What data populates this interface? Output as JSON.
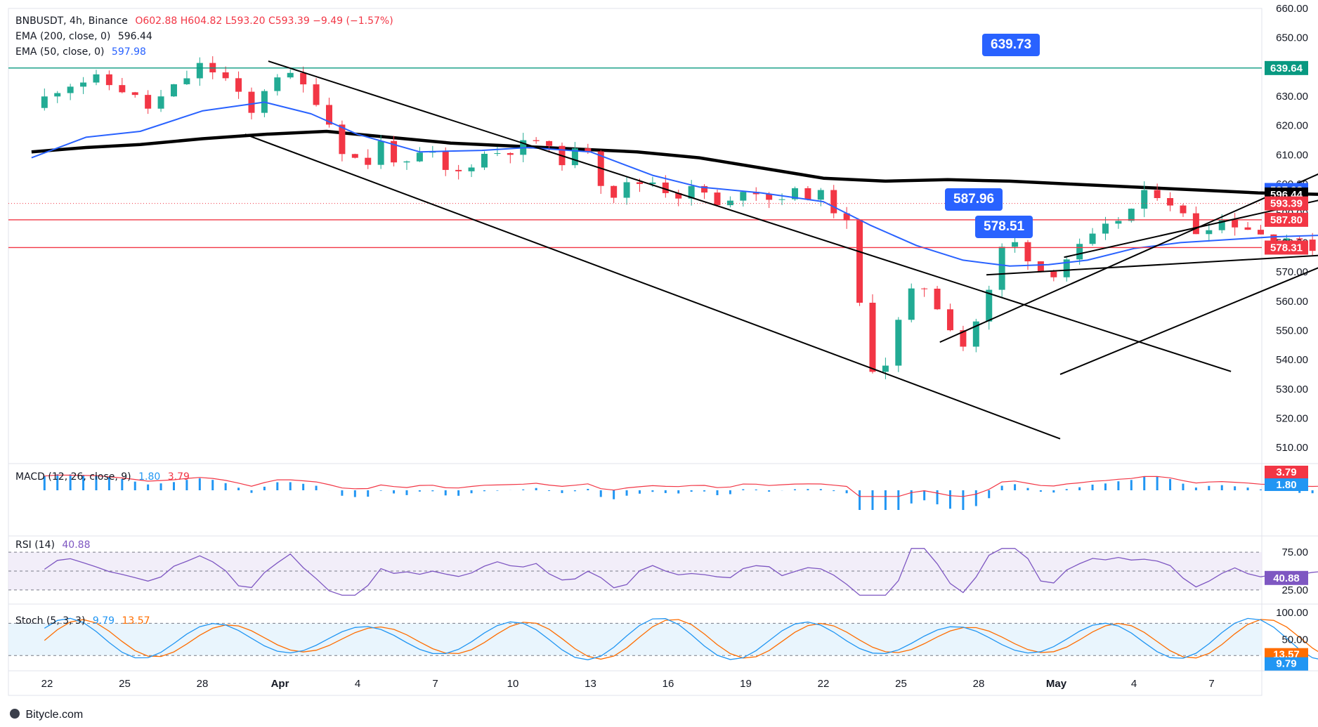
{
  "header": {
    "symbol": "BNBUSDT, 4h, Binance",
    "ohlc": "O602.88  H604.82  L593.20  C593.39  −9.49 (−1.57%)",
    "ema200_label": "EMA (200, close, 0)",
    "ema200_value": "596.44",
    "ema50_label": "EMA (50, close, 0)",
    "ema50_value": "597.98"
  },
  "indicators": {
    "macd_label": "MACD (12, 26, close, 9)",
    "macd_value": "1.80",
    "signal_value": "3.79",
    "rsi_label": "RSI (14)",
    "rsi_value": "40.88",
    "stoch_label": "Stoch (5, 3, 3)",
    "stoch_k": "9.79",
    "stoch_d": "13.57"
  },
  "callouts": {
    "upper": "639.73",
    "mid": "587.96",
    "lower": "578.51"
  },
  "brand": "Bitycle.com",
  "colors": {
    "up": "#22ab94",
    "down": "#f23645",
    "ema50": "#2962ff",
    "ema200": "#000000",
    "green_line": "#089981",
    "red_line": "#f23645",
    "callout": "#2962ff",
    "rsi": "#7e57c2",
    "stoch_k": "#2196f3",
    "stoch_d": "#ff6d00"
  },
  "chart_data": {
    "type": "candlestick",
    "symbol": "BNBUSDT",
    "timeframe": "4h",
    "exchange": "Binance",
    "price_axis": {
      "ylim": [
        505,
        660
      ],
      "ticks": [
        660,
        650,
        640,
        630,
        620,
        610,
        600,
        590,
        580,
        570,
        560,
        550,
        540,
        530,
        520,
        510
      ],
      "tick_labels": [
        "660.00",
        "650.00",
        "640.00",
        "630.00",
        "620.00",
        "610.00",
        "600.00",
        "590.00",
        "580.00",
        "570.00",
        "560.00",
        "550.00",
        "540.00",
        "530.00",
        "520.00",
        "510.00"
      ]
    },
    "x_axis": {
      "labels": [
        "22",
        "25",
        "28",
        "Apr",
        "4",
        "7",
        "10",
        "13",
        "16",
        "19",
        "22",
        "25",
        "28",
        "May",
        "4",
        "7"
      ],
      "last_bar_label_index": 10.85
    },
    "price_path": [
      [
        -0.2,
        626
      ],
      [
        0.2,
        634
      ],
      [
        0.6,
        636
      ],
      [
        1.0,
        632
      ],
      [
        1.3,
        626
      ],
      [
        1.6,
        632
      ],
      [
        2.0,
        641
      ],
      [
        2.4,
        634
      ],
      [
        2.6,
        622
      ],
      [
        2.9,
        638
      ],
      [
        3.2,
        636
      ],
      [
        3.5,
        628
      ],
      [
        3.8,
        612
      ],
      [
        4.1,
        606
      ],
      [
        4.3,
        614
      ],
      [
        4.6,
        605
      ],
      [
        4.9,
        612
      ],
      [
        5.2,
        602
      ],
      [
        5.6,
        610
      ],
      [
        6.0,
        612
      ],
      [
        6.3,
        615
      ],
      [
        6.6,
        608
      ],
      [
        7.0,
        613
      ],
      [
        7.2,
        595
      ],
      [
        7.5,
        600
      ],
      [
        7.8,
        601
      ],
      [
        8.1,
        596
      ],
      [
        8.4,
        599
      ],
      [
        8.7,
        590
      ],
      [
        9.0,
        600
      ],
      [
        9.3,
        595
      ],
      [
        9.6,
        597
      ],
      [
        10.0,
        596
      ],
      [
        10.3,
        586
      ],
      [
        10.5,
        553
      ],
      [
        10.7,
        530
      ],
      [
        10.9,
        548
      ],
      [
        11.1,
        562
      ],
      [
        11.3,
        565
      ],
      [
        11.6,
        553
      ],
      [
        11.8,
        545
      ],
      [
        12.1,
        560
      ],
      [
        12.3,
        578
      ],
      [
        12.5,
        580
      ],
      [
        12.7,
        573
      ],
      [
        12.9,
        568
      ],
      [
        13.1,
        574
      ],
      [
        13.4,
        580
      ],
      [
        13.7,
        586
      ],
      [
        14.0,
        592
      ],
      [
        14.2,
        598
      ],
      [
        14.4,
        596
      ],
      [
        14.6,
        590
      ],
      [
        14.8,
        584
      ],
      [
        15.1,
        588
      ],
      [
        15.4,
        586
      ],
      [
        15.7,
        582
      ],
      [
        16.0,
        582
      ],
      [
        16.2,
        578
      ],
      [
        16.5,
        580
      ],
      [
        16.8,
        583
      ],
      [
        17.1,
        587
      ],
      [
        17.4,
        589
      ],
      [
        17.7,
        592
      ],
      [
        18.0,
        590
      ],
      [
        18.3,
        589
      ],
      [
        18.6,
        591
      ],
      [
        18.9,
        590
      ],
      [
        19.2,
        588
      ],
      [
        19.4,
        597
      ],
      [
        19.6,
        604
      ],
      [
        19.8,
        599
      ],
      [
        20.0,
        594
      ],
      [
        20.2,
        604
      ],
      [
        20.5,
        610
      ],
      [
        20.7,
        614
      ],
      [
        20.85,
        618
      ],
      [
        21.0,
        611
      ],
      [
        21.2,
        606
      ],
      [
        21.4,
        604
      ],
      [
        21.55,
        593.39
      ]
    ],
    "series": [
      {
        "name": "EMA (200, close, 0)",
        "last": 596.44,
        "path": [
          [
            -0.2,
            611
          ],
          [
            0.5,
            612.5
          ],
          [
            1.2,
            613.5
          ],
          [
            2.0,
            615.5
          ],
          [
            2.8,
            617
          ],
          [
            3.6,
            618
          ],
          [
            4.4,
            616
          ],
          [
            5.2,
            614
          ],
          [
            6.0,
            613
          ],
          [
            6.8,
            612
          ],
          [
            7.6,
            611
          ],
          [
            8.4,
            609
          ],
          [
            9.2,
            605.5
          ],
          [
            10.0,
            602
          ],
          [
            10.8,
            601
          ],
          [
            11.6,
            601.5
          ],
          [
            12.4,
            601
          ],
          [
            13.2,
            600
          ],
          [
            14.0,
            599
          ],
          [
            14.8,
            598
          ],
          [
            15.6,
            597
          ],
          [
            16.4,
            596.5
          ],
          [
            17.2,
            596
          ],
          [
            18.0,
            596
          ],
          [
            18.8,
            596
          ],
          [
            19.6,
            595.5
          ],
          [
            20.4,
            595.5
          ],
          [
            21.0,
            596
          ],
          [
            21.55,
            596.44
          ]
        ]
      },
      {
        "name": "EMA (50, close, 0)",
        "last": 597.98,
        "path": [
          [
            -0.2,
            609
          ],
          [
            0.5,
            616
          ],
          [
            1.2,
            618
          ],
          [
            2.0,
            625
          ],
          [
            2.8,
            628
          ],
          [
            3.4,
            624
          ],
          [
            4.0,
            617
          ],
          [
            4.8,
            611
          ],
          [
            5.6,
            611.5
          ],
          [
            6.2,
            612.5
          ],
          [
            7.0,
            611
          ],
          [
            7.8,
            603
          ],
          [
            8.4,
            599
          ],
          [
            9.2,
            597
          ],
          [
            10.0,
            594
          ],
          [
            10.6,
            586
          ],
          [
            11.2,
            579
          ],
          [
            11.8,
            574
          ],
          [
            12.4,
            572
          ],
          [
            12.9,
            572.5
          ],
          [
            13.4,
            574
          ],
          [
            14.0,
            578
          ],
          [
            14.6,
            580
          ],
          [
            15.2,
            581
          ],
          [
            15.8,
            582
          ],
          [
            16.4,
            582.5
          ],
          [
            17.0,
            584
          ],
          [
            17.6,
            586
          ],
          [
            18.2,
            587
          ],
          [
            18.8,
            588
          ],
          [
            19.4,
            589
          ],
          [
            20.0,
            592
          ],
          [
            20.6,
            595
          ],
          [
            21.0,
            597
          ],
          [
            21.3,
            598.5
          ],
          [
            21.55,
            597.98
          ]
        ]
      }
    ],
    "horizontal_levels": [
      {
        "value": 639.64,
        "label": "639.64",
        "color": "#089981"
      },
      {
        "value": 587.8,
        "label": "587.80",
        "color": "#f23645"
      },
      {
        "value": 578.31,
        "label": "578.31",
        "color": "#f23645"
      }
    ],
    "price_labels": [
      {
        "value": 597.98,
        "label": "597.98",
        "color": "#2962ff"
      },
      {
        "value": 596.44,
        "label": "596.44",
        "color": "#000000"
      },
      {
        "value": 593.39,
        "label": "593.39",
        "color": "#f23645"
      }
    ],
    "trend_lines": [
      {
        "x1": 2.85,
        "y1": 642,
        "x2": 15.25,
        "y2": 536
      },
      {
        "x1": 2.55,
        "y1": 617,
        "x2": 13.05,
        "y2": 513
      },
      {
        "x1": 11.5,
        "y1": 546,
        "x2": 19.65,
        "y2": 642
      },
      {
        "x1": 13.1,
        "y1": 575,
        "x2": 20.85,
        "y2": 621
      },
      {
        "x1": 12.1,
        "y1": 569,
        "x2": 23.1,
        "y2": 586
      },
      {
        "x1": 13.05,
        "y1": 535,
        "x2": 22.0,
        "y2": 633
      }
    ],
    "annotations": [
      {
        "text": "639.73",
        "x": 23.3,
        "y": 639.73
      },
      {
        "text": "587.96",
        "x": 22.2,
        "y": 587.96
      },
      {
        "text": "578.51",
        "x": 23.0,
        "y": 578.51
      }
    ],
    "macd": {
      "label": "MACD (12, 26, close, 9)",
      "macd": 1.8,
      "signal": 3.79
    },
    "rsi": {
      "label": "RSI (14)",
      "value": 40.88,
      "levels": [
        75,
        50,
        25
      ],
      "tick_labels": [
        "75.00",
        "25.00"
      ]
    },
    "stochastic": {
      "label": "Stoch (5, 3, 3)",
      "k": 9.79,
      "d": 13.57,
      "levels": [
        80,
        20
      ],
      "tick_labels": [
        "100.00",
        "50.00"
      ]
    }
  }
}
